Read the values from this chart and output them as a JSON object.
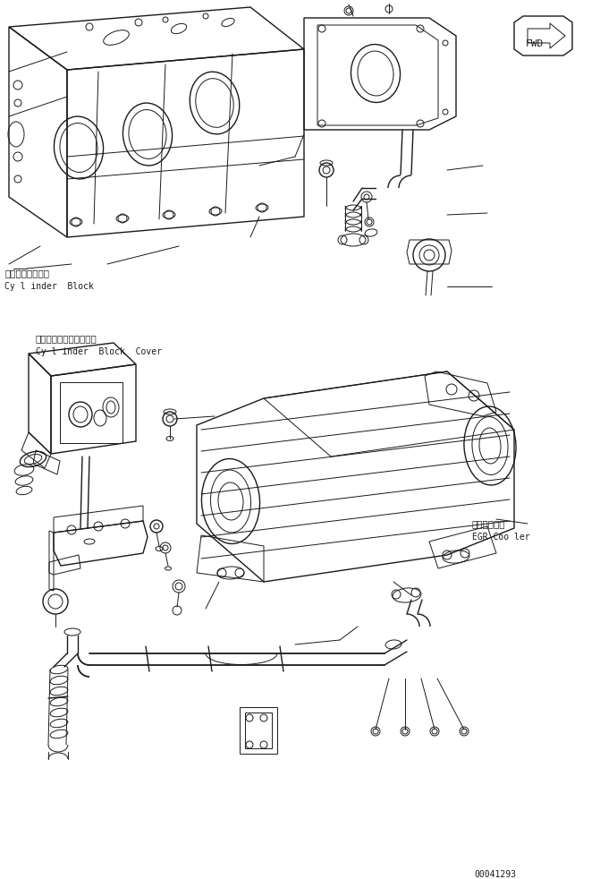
{
  "bg_color": "#ffffff",
  "fig_width": 6.71,
  "fig_height": 9.82,
  "dpi": 100,
  "labels": {
    "cylinder_block_jp": "シリンダブロック",
    "cylinder_block_en": "Cy l inder  Block",
    "cylinder_block_cover_jp": "シリンダブロックカバー",
    "cylinder_block_cover_en": "Cy l inder  Block  Cover",
    "egr_cooler_jp": "ＥＧＲクーラ",
    "egr_cooler_en": "EGR Coo ler"
  },
  "part_number": "00041293",
  "fwd_label": "FWD"
}
